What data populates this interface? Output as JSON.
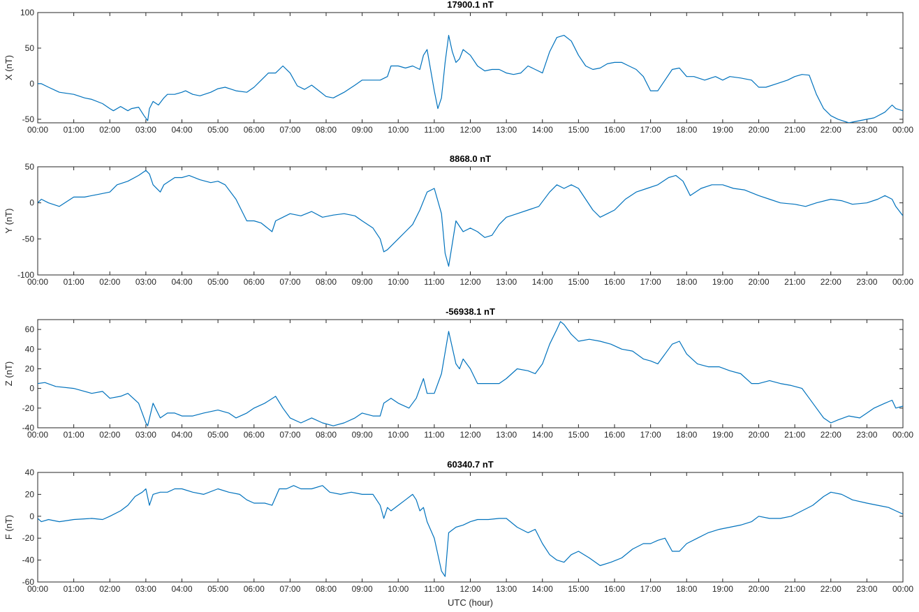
{
  "chart_data": {
    "type": "line",
    "xlabel": "UTC (hour)",
    "x_tick_labels": [
      "00:00",
      "01:00",
      "02:00",
      "03:00",
      "04:00",
      "05:00",
      "06:00",
      "07:00",
      "08:00",
      "09:00",
      "10:00",
      "11:00",
      "12:00",
      "13:00",
      "14:00",
      "15:00",
      "16:00",
      "17:00",
      "18:00",
      "19:00",
      "20:00",
      "21:00",
      "22:00",
      "23:00",
      "00:00"
    ],
    "xlim": [
      0,
      24
    ],
    "grid": false,
    "line_color": "#0072bd",
    "panels": [
      {
        "title": "17900.1 nT",
        "ylabel": "X (nT)",
        "ylim": [
          -55,
          100
        ],
        "yticks": [
          -50,
          0,
          50,
          100
        ],
        "series": [
          {
            "x": [
              0,
              0.1,
              0.3,
              0.6,
              1.0,
              1.3,
              1.5,
              1.8,
              2.0,
              2.1,
              2.3,
              2.5,
              2.6,
              2.8,
              2.95,
              3.05,
              3.1,
              3.2,
              3.35,
              3.5,
              3.6,
              3.8,
              4.0,
              4.1,
              4.3,
              4.5,
              4.8,
              5.0,
              5.2,
              5.5,
              5.8,
              6.0,
              6.2,
              6.4,
              6.6,
              6.8,
              7.0,
              7.2,
              7.4,
              7.6,
              7.8,
              8.0,
              8.2,
              8.5,
              8.8,
              9.0,
              9.3,
              9.5,
              9.7,
              9.8,
              10.0,
              10.2,
              10.4,
              10.6,
              10.7,
              10.8,
              11.0,
              11.1,
              11.2,
              11.3,
              11.4,
              11.5,
              11.6,
              11.7,
              11.8,
              12.0,
              12.2,
              12.4,
              12.6,
              12.8,
              13.0,
              13.2,
              13.4,
              13.6,
              13.8,
              14.0,
              14.2,
              14.4,
              14.6,
              14.8,
              15.0,
              15.2,
              15.4,
              15.6,
              15.8,
              16.0,
              16.2,
              16.4,
              16.6,
              16.8,
              17.0,
              17.2,
              17.4,
              17.6,
              17.8,
              18.0,
              18.2,
              18.5,
              18.8,
              19.0,
              19.2,
              19.5,
              19.8,
              20.0,
              20.2,
              20.5,
              20.8,
              21.0,
              21.2,
              21.4,
              21.6,
              21.8,
              22.0,
              22.2,
              22.5,
              22.8,
              23.0,
              23.2,
              23.5,
              23.7,
              23.8,
              24.0
            ],
            "y": [
              0,
              0,
              -5,
              -12,
              -15,
              -20,
              -22,
              -28,
              -35,
              -38,
              -32,
              -38,
              -35,
              -33,
              -45,
              -52,
              -35,
              -25,
              -30,
              -20,
              -15,
              -15,
              -12,
              -10,
              -15,
              -17,
              -12,
              -7,
              -5,
              -10,
              -12,
              -5,
              5,
              15,
              15,
              25,
              15,
              -3,
              -8,
              -2,
              -10,
              -18,
              -20,
              -12,
              -2,
              5,
              5,
              5,
              10,
              25,
              25,
              22,
              25,
              20,
              40,
              48,
              -10,
              -35,
              -20,
              30,
              68,
              45,
              30,
              35,
              48,
              40,
              25,
              18,
              20,
              20,
              15,
              13,
              15,
              25,
              20,
              15,
              45,
              65,
              68,
              60,
              40,
              25,
              20,
              22,
              28,
              30,
              30,
              25,
              20,
              10,
              -10,
              -10,
              5,
              20,
              22,
              10,
              10,
              5,
              10,
              5,
              10,
              8,
              5,
              -5,
              -5,
              0,
              5,
              10,
              13,
              12,
              -15,
              -35,
              -45,
              -50,
              -55,
              -52,
              -50,
              -48,
              -40,
              -30,
              -35,
              -38
            ]
          }
        ]
      },
      {
        "title": "8868.0 nT",
        "ylabel": "Y (nT)",
        "ylim": [
          -100,
          50
        ],
        "yticks": [
          -100,
          -50,
          0,
          50
        ],
        "series": [
          {
            "x": [
              0,
              0.1,
              0.3,
              0.6,
              1.0,
              1.3,
              1.5,
              1.7,
              2.0,
              2.2,
              2.5,
              2.8,
              3.0,
              3.1,
              3.2,
              3.4,
              3.5,
              3.8,
              4.0,
              4.2,
              4.5,
              4.8,
              5.0,
              5.2,
              5.5,
              5.8,
              6.0,
              6.2,
              6.5,
              6.6,
              6.8,
              7.0,
              7.3,
              7.6,
              7.9,
              8.2,
              8.5,
              8.8,
              9.0,
              9.3,
              9.5,
              9.6,
              9.7,
              9.8,
              10.0,
              10.2,
              10.4,
              10.6,
              10.8,
              11.0,
              11.2,
              11.3,
              11.4,
              11.6,
              11.8,
              12.0,
              12.2,
              12.4,
              12.6,
              12.8,
              13.0,
              13.3,
              13.6,
              13.9,
              14.2,
              14.4,
              14.6,
              14.8,
              15.0,
              15.2,
              15.4,
              15.6,
              15.8,
              16.0,
              16.3,
              16.6,
              16.9,
              17.2,
              17.5,
              17.7,
              17.9,
              18.1,
              18.4,
              18.7,
              19.0,
              19.3,
              19.6,
              20.0,
              20.3,
              20.6,
              21.0,
              21.3,
              21.6,
              22.0,
              22.3,
              22.6,
              23.0,
              23.3,
              23.5,
              23.7,
              23.8,
              24.0
            ],
            "y": [
              0,
              5,
              0,
              -5,
              8,
              8,
              10,
              12,
              15,
              25,
              30,
              38,
              45,
              40,
              25,
              15,
              25,
              35,
              35,
              38,
              32,
              28,
              30,
              25,
              5,
              -25,
              -25,
              -28,
              -40,
              -25,
              -20,
              -15,
              -18,
              -12,
              -20,
              -17,
              -15,
              -18,
              -25,
              -35,
              -50,
              -68,
              -65,
              -60,
              -50,
              -40,
              -30,
              -10,
              15,
              20,
              -15,
              -70,
              -88,
              -25,
              -40,
              -35,
              -40,
              -48,
              -45,
              -30,
              -20,
              -15,
              -10,
              -5,
              15,
              25,
              20,
              25,
              20,
              5,
              -10,
              -20,
              -15,
              -10,
              5,
              15,
              20,
              25,
              35,
              38,
              30,
              10,
              20,
              25,
              25,
              20,
              18,
              10,
              5,
              0,
              -2,
              -5,
              0,
              5,
              3,
              -2,
              0,
              5,
              10,
              5,
              -5,
              -18
            ]
          }
        ]
      },
      {
        "title": "-56938.1 nT",
        "ylabel": "Z (nT)",
        "ylim": [
          -40,
          70
        ],
        "yticks": [
          -40,
          -20,
          0,
          20,
          40,
          60
        ],
        "series": [
          {
            "x": [
              0,
              0.2,
              0.5,
              1.0,
              1.5,
              1.8,
              2.0,
              2.3,
              2.5,
              2.8,
              3.0,
              3.05,
              3.2,
              3.4,
              3.6,
              3.8,
              4.0,
              4.3,
              4.6,
              5.0,
              5.3,
              5.5,
              5.8,
              6.0,
              6.3,
              6.6,
              6.8,
              7.0,
              7.3,
              7.6,
              7.9,
              8.2,
              8.5,
              8.8,
              9.0,
              9.3,
              9.5,
              9.6,
              9.8,
              10.0,
              10.3,
              10.5,
              10.6,
              10.7,
              10.8,
              11.0,
              11.2,
              11.4,
              11.6,
              11.7,
              11.8,
              12.0,
              12.2,
              12.5,
              12.8,
              13.0,
              13.3,
              13.6,
              13.8,
              14.0,
              14.2,
              14.4,
              14.5,
              14.6,
              14.8,
              15.0,
              15.3,
              15.6,
              15.9,
              16.2,
              16.5,
              16.8,
              17.0,
              17.2,
              17.4,
              17.6,
              17.8,
              18.0,
              18.3,
              18.6,
              18.9,
              19.2,
              19.5,
              19.8,
              20.0,
              20.3,
              20.6,
              20.9,
              21.2,
              21.4,
              21.6,
              21.8,
              22.0,
              22.2,
              22.5,
              22.8,
              23.0,
              23.2,
              23.5,
              23.7,
              23.8,
              24.0
            ],
            "y": [
              5,
              6,
              2,
              0,
              -5,
              -3,
              -10,
              -8,
              -5,
              -15,
              -35,
              -38,
              -15,
              -30,
              -25,
              -25,
              -28,
              -28,
              -25,
              -22,
              -25,
              -30,
              -25,
              -20,
              -15,
              -8,
              -20,
              -30,
              -35,
              -30,
              -35,
              -38,
              -35,
              -30,
              -25,
              -28,
              -28,
              -15,
              -10,
              -15,
              -20,
              -10,
              0,
              10,
              -5,
              -5,
              15,
              58,
              25,
              20,
              30,
              20,
              5,
              5,
              5,
              10,
              20,
              18,
              15,
              25,
              45,
              60,
              68,
              65,
              55,
              48,
              50,
              48,
              45,
              40,
              38,
              30,
              28,
              25,
              35,
              45,
              48,
              35,
              25,
              22,
              22,
              18,
              15,
              5,
              5,
              8,
              5,
              3,
              0,
              -10,
              -20,
              -30,
              -35,
              -32,
              -28,
              -30,
              -25,
              -20,
              -15,
              -12,
              -20,
              -18
            ]
          }
        ]
      },
      {
        "title": "60340.7 nT",
        "ylabel": "F (nT)",
        "ylim": [
          -60,
          40
        ],
        "yticks": [
          -60,
          -40,
          -20,
          0,
          20,
          40
        ],
        "series": [
          {
            "x": [
              0,
              0.1,
              0.3,
              0.6,
              1.0,
              1.5,
              1.8,
              2.0,
              2.3,
              2.5,
              2.7,
              2.9,
              3.0,
              3.1,
              3.2,
              3.4,
              3.6,
              3.8,
              4.0,
              4.3,
              4.6,
              5.0,
              5.3,
              5.6,
              5.8,
              6.0,
              6.3,
              6.5,
              6.7,
              6.9,
              7.1,
              7.3,
              7.6,
              7.9,
              8.1,
              8.4,
              8.7,
              9.0,
              9.3,
              9.5,
              9.6,
              9.7,
              9.8,
              10.0,
              10.2,
              10.4,
              10.5,
              10.6,
              10.7,
              10.8,
              11.0,
              11.2,
              11.3,
              11.4,
              11.6,
              11.8,
              12.0,
              12.2,
              12.5,
              12.8,
              13.0,
              13.3,
              13.6,
              13.8,
              14.0,
              14.2,
              14.4,
              14.6,
              14.8,
              15.0,
              15.3,
              15.6,
              15.9,
              16.2,
              16.5,
              16.8,
              17.0,
              17.2,
              17.4,
              17.6,
              17.8,
              18.0,
              18.3,
              18.6,
              18.9,
              19.2,
              19.5,
              19.8,
              20.0,
              20.3,
              20.6,
              20.9,
              21.2,
              21.5,
              21.8,
              22.0,
              22.3,
              22.6,
              23.0,
              23.3,
              23.6,
              23.8,
              24.0
            ],
            "y": [
              -2,
              -5,
              -3,
              -5,
              -3,
              -2,
              -3,
              0,
              5,
              10,
              18,
              22,
              25,
              10,
              20,
              22,
              22,
              25,
              25,
              22,
              20,
              25,
              22,
              20,
              15,
              12,
              12,
              10,
              25,
              25,
              28,
              25,
              25,
              28,
              22,
              20,
              22,
              20,
              20,
              10,
              -2,
              8,
              5,
              10,
              15,
              20,
              15,
              5,
              8,
              -5,
              -20,
              -50,
              -55,
              -15,
              -10,
              -8,
              -5,
              -3,
              -3,
              -2,
              -2,
              -10,
              -15,
              -12,
              -25,
              -35,
              -40,
              -42,
              -35,
              -32,
              -38,
              -45,
              -42,
              -38,
              -30,
              -25,
              -25,
              -22,
              -20,
              -32,
              -32,
              -25,
              -20,
              -15,
              -12,
              -10,
              -8,
              -5,
              0,
              -2,
              -2,
              0,
              5,
              10,
              18,
              22,
              20,
              15,
              12,
              10,
              8,
              5,
              2
            ]
          }
        ]
      }
    ]
  }
}
